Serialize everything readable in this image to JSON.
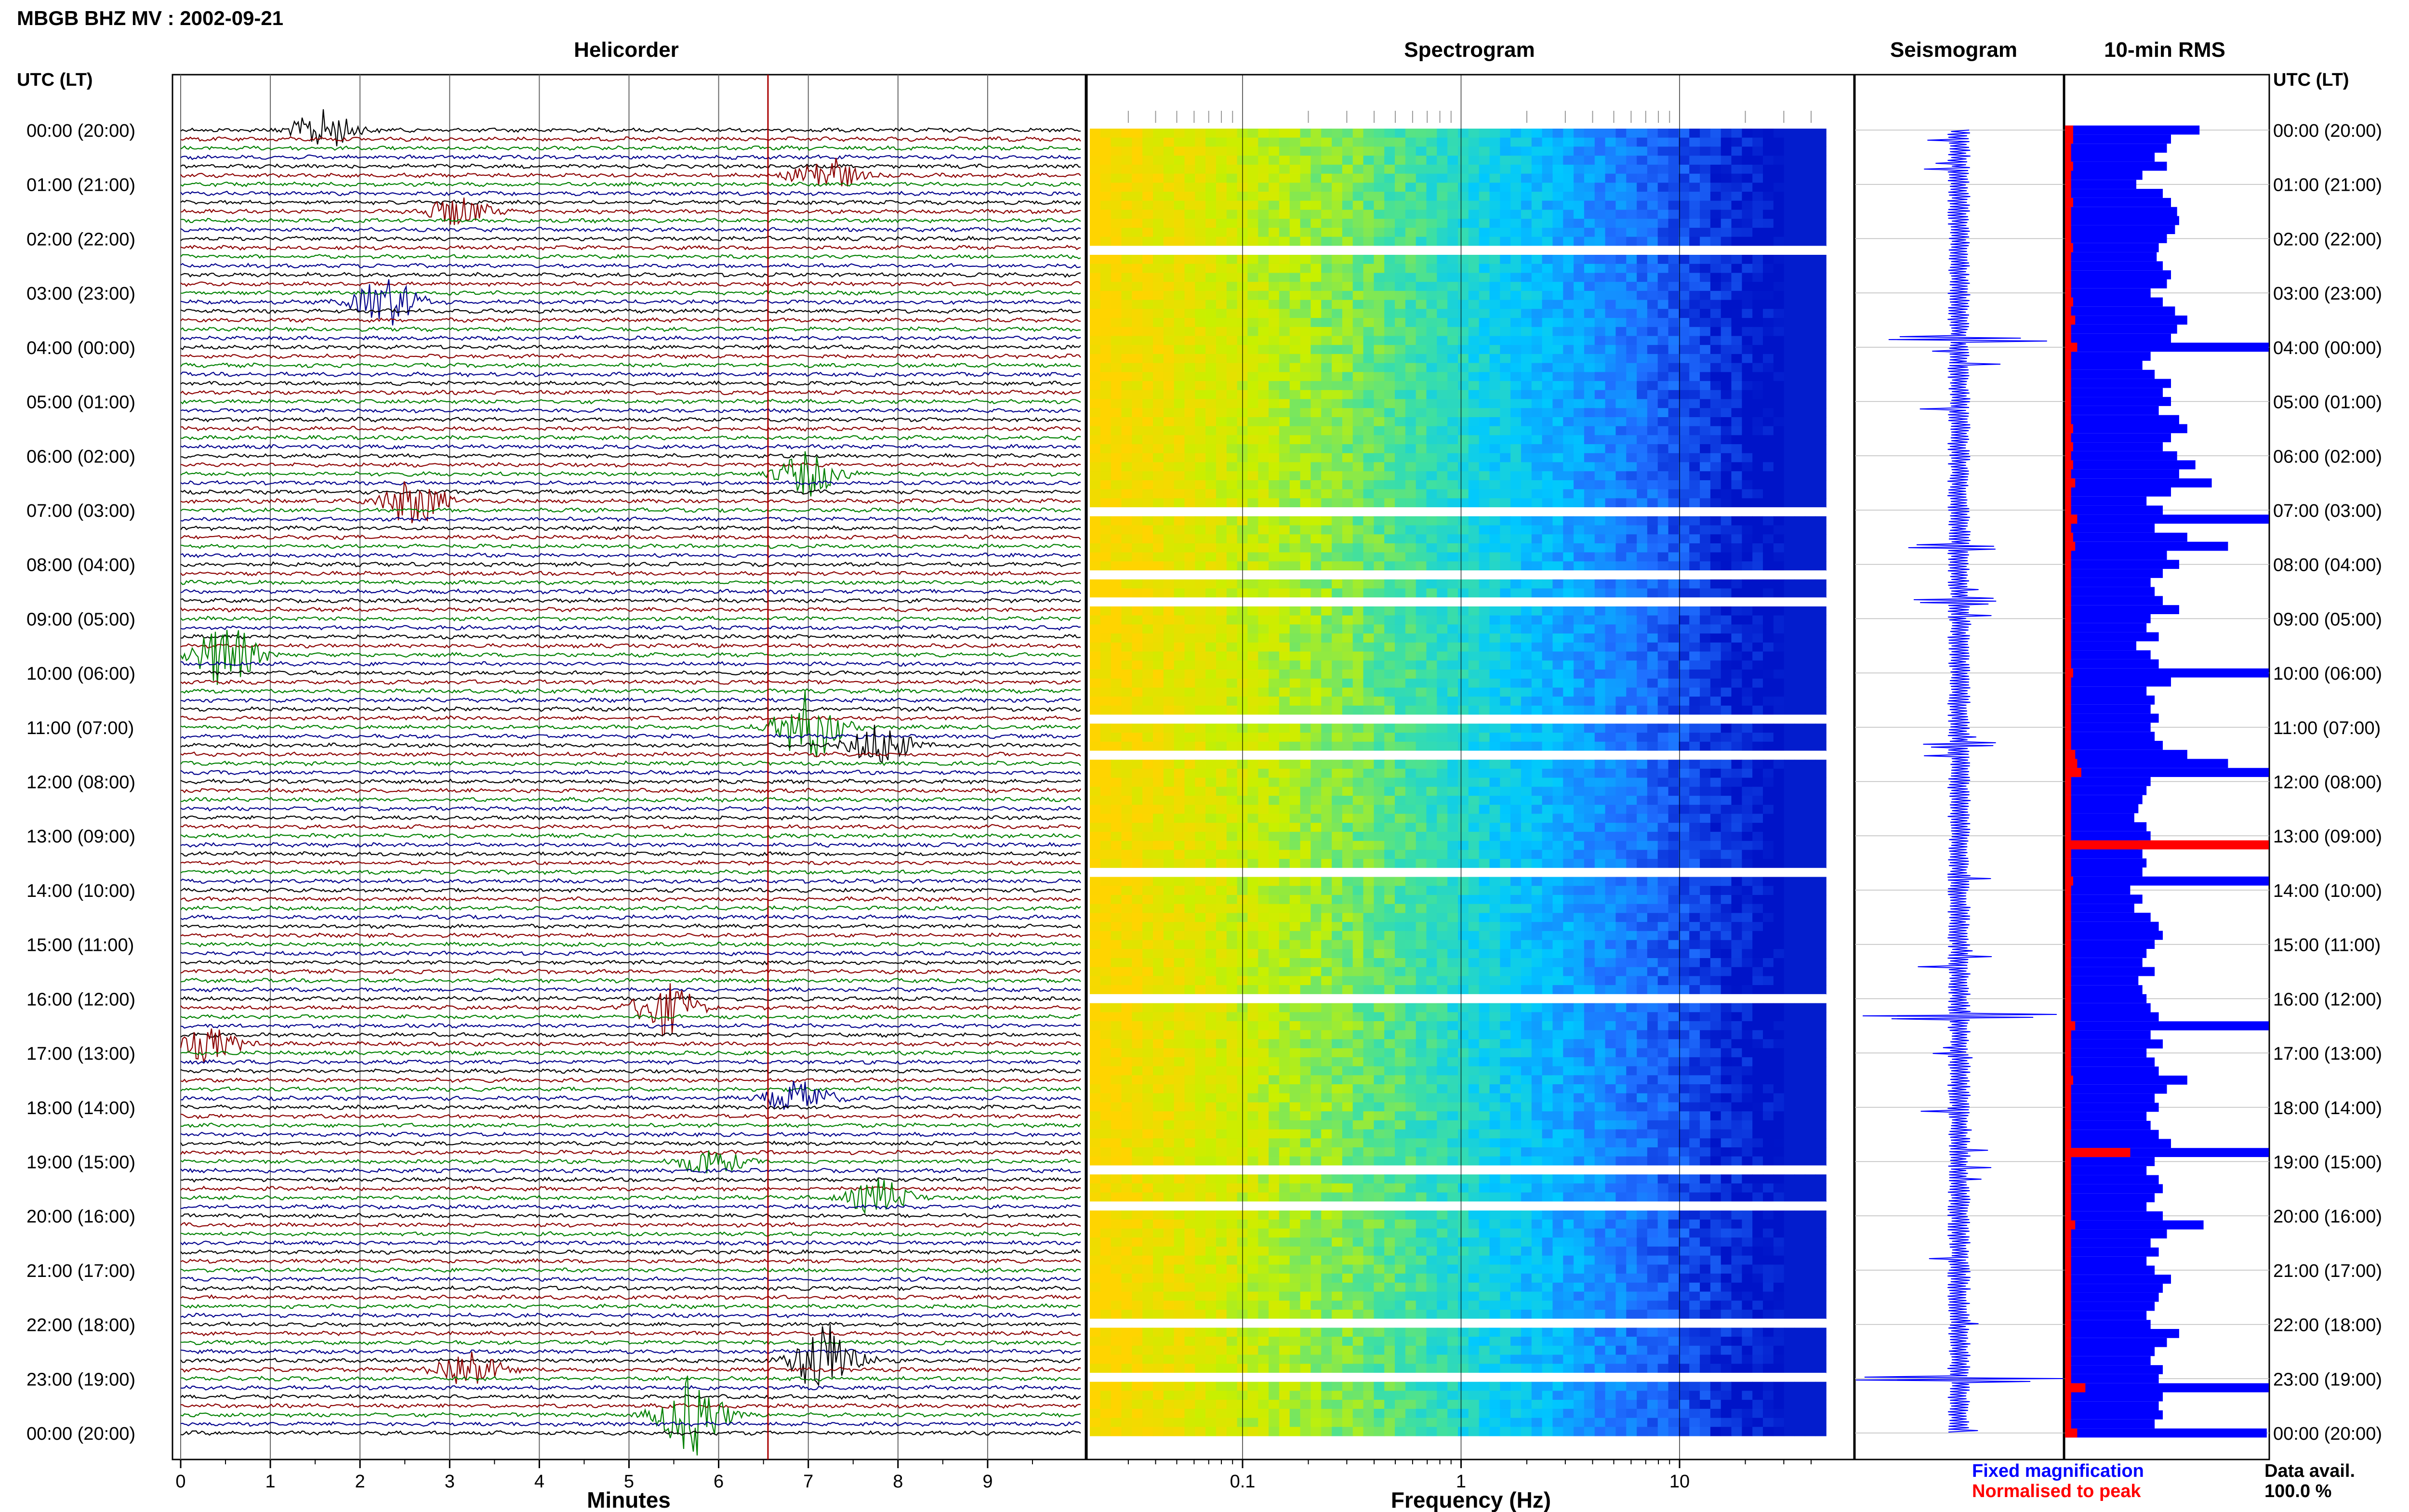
{
  "header": {
    "title": "MBGB BHZ MV : 2002-09-21",
    "utc_label_left": "UTC (LT)",
    "utc_label_right": "UTC (LT)"
  },
  "panels": {
    "helicorder": "Helicorder",
    "spectrogram": "Spectrogram",
    "seismogram": "Seismogram",
    "rms": "10-min RMS"
  },
  "colors": {
    "trace_cycle": [
      "#000000",
      "#8b0000",
      "#008000",
      "#00008b"
    ],
    "rms_fixed": "#0000ff",
    "rms_normalised": "#ff0000",
    "seismogram": "#0000ff",
    "cursor": "#aa0000"
  },
  "time_labels": [
    "00:00 (20:00)",
    "01:00 (21:00)",
    "02:00 (22:00)",
    "03:00 (23:00)",
    "04:00 (00:00)",
    "05:00 (01:00)",
    "06:00 (02:00)",
    "07:00 (03:00)",
    "08:00 (04:00)",
    "09:00 (05:00)",
    "10:00 (06:00)",
    "11:00 (07:00)",
    "12:00 (08:00)",
    "13:00 (09:00)",
    "14:00 (10:00)",
    "15:00 (11:00)",
    "16:00 (12:00)",
    "17:00 (13:00)",
    "18:00 (14:00)",
    "19:00 (15:00)",
    "20:00 (16:00)",
    "21:00 (17:00)",
    "22:00 (18:00)",
    "23:00 (19:00)",
    "00:00 (20:00)"
  ],
  "legend": {
    "fixed": "Fixed magnification",
    "normalised": "Normalised to peak",
    "data_avail_label": "Data avail.",
    "data_avail_value": "100.0 %"
  },
  "chart_data": [
    {
      "type": "line",
      "panel": "Helicorder",
      "xlabel": "Minutes",
      "x_ticks": [
        "0",
        "1",
        "2",
        "3",
        "4",
        "5",
        "6",
        "7",
        "8",
        "9"
      ],
      "xlim": [
        0,
        10
      ],
      "cursor_minute": 6.55,
      "rows": 145,
      "events": [
        {
          "row": 0,
          "minute": 1.6,
          "amp": 1.2
        },
        {
          "row": 5,
          "minute": 7.2,
          "amp": 1.1
        },
        {
          "row": 9,
          "minute": 3.1,
          "amp": 0.9
        },
        {
          "row": 19,
          "minute": 2.3,
          "amp": 1.5
        },
        {
          "row": 38,
          "minute": 7.0,
          "amp": 1.3
        },
        {
          "row": 41,
          "minute": 2.6,
          "amp": 1.4
        },
        {
          "row": 58,
          "minute": 0.5,
          "amp": 2.0
        },
        {
          "row": 66,
          "minute": 7.0,
          "amp": 2.2
        },
        {
          "row": 68,
          "minute": 7.8,
          "amp": 1.3
        },
        {
          "row": 97,
          "minute": 5.4,
          "amp": 1.6
        },
        {
          "row": 101,
          "minute": 0.3,
          "amp": 1.0
        },
        {
          "row": 107,
          "minute": 6.9,
          "amp": 1.0
        },
        {
          "row": 114,
          "minute": 5.9,
          "amp": 0.9
        },
        {
          "row": 118,
          "minute": 7.8,
          "amp": 1.1
        },
        {
          "row": 136,
          "minute": 7.2,
          "amp": 2.4
        },
        {
          "row": 137,
          "minute": 3.2,
          "amp": 1.2
        },
        {
          "row": 142,
          "minute": 5.7,
          "amp": 2.5
        }
      ]
    },
    {
      "type": "heatmap",
      "panel": "Spectrogram",
      "xlabel": "Frequency (Hz)",
      "x_scale": "log",
      "x_ticks": [
        "0.1",
        "1",
        "10"
      ],
      "xlim": [
        0.02,
        50
      ],
      "colormap": [
        "#ffd400",
        "#c8f000",
        "#40e0a0",
        "#00c8ff",
        "#1f6fff",
        "#0014c8"
      ],
      "gap_rows": [
        13,
        42,
        49,
        52,
        65,
        69,
        82,
        96,
        115,
        119,
        132,
        138
      ]
    },
    {
      "type": "line",
      "panel": "Seismogram",
      "spikes": [
        {
          "row": 23,
          "amp": 0.9
        },
        {
          "row": 46,
          "amp": 0.5
        },
        {
          "row": 52,
          "amp": 0.5
        },
        {
          "row": 68,
          "amp": 0.4
        },
        {
          "row": 98,
          "amp": 0.95
        },
        {
          "row": 138,
          "amp": 1.0
        }
      ]
    },
    {
      "type": "bar",
      "panel": "10-min RMS",
      "orientation": "horizontal",
      "series": [
        {
          "name": "Fixed magnification",
          "values": [
            0.66,
            0.52,
            0.5,
            0.44,
            0.5,
            0.38,
            0.35,
            0.48,
            0.52,
            0.55,
            0.56,
            0.54,
            0.5,
            0.46,
            0.45,
            0.48,
            0.52,
            0.5,
            0.42,
            0.48,
            0.54,
            0.6,
            0.55,
            0.52,
            1.0,
            0.42,
            0.38,
            0.44,
            0.52,
            0.48,
            0.52,
            0.46,
            0.56,
            0.6,
            0.52,
            0.48,
            0.55,
            0.64,
            0.56,
            0.72,
            0.52,
            0.4,
            0.48,
            1.0,
            0.44,
            0.6,
            0.8,
            0.5,
            0.56,
            0.48,
            0.42,
            0.44,
            0.48,
            0.56,
            0.42,
            0.4,
            0.46,
            0.35,
            0.42,
            0.46,
            1.0,
            0.52,
            0.4,
            0.44,
            0.42,
            0.46,
            0.42,
            0.44,
            0.48,
            0.6,
            0.8,
            1.0,
            0.42,
            0.4,
            0.38,
            0.36,
            0.34,
            0.4,
            0.42,
            0.36,
            0.38,
            0.4,
            0.38,
            1.0,
            0.32,
            0.38,
            0.34,
            0.42,
            0.46,
            0.48,
            0.44,
            0.4,
            0.38,
            0.44,
            0.36,
            0.38,
            0.4,
            0.42,
            0.46,
            1.0,
            0.42,
            0.48,
            0.4,
            0.44,
            0.46,
            0.6,
            0.5,
            0.44,
            0.46,
            0.4,
            0.42,
            0.46,
            0.52,
            1.0,
            0.44,
            0.4,
            0.46,
            0.48,
            0.44,
            0.4,
            0.48,
            0.68,
            0.5,
            0.42,
            0.46,
            0.4,
            0.44,
            0.52,
            0.48,
            0.46,
            0.44,
            0.4,
            0.42,
            0.56,
            0.5,
            0.44,
            0.42,
            0.48,
            0.46,
            1.0,
            0.48,
            0.46,
            0.48,
            0.44,
            0.99
          ]
        },
        {
          "name": "Normalised to peak",
          "values": [
            0.04,
            0.04,
            0.03,
            0.03,
            0.04,
            0.03,
            0.03,
            0.03,
            0.04,
            0.03,
            0.03,
            0.03,
            0.03,
            0.04,
            0.03,
            0.03,
            0.03,
            0.03,
            0.03,
            0.04,
            0.03,
            0.05,
            0.03,
            0.03,
            0.06,
            0.03,
            0.03,
            0.03,
            0.03,
            0.03,
            0.03,
            0.03,
            0.03,
            0.04,
            0.03,
            0.04,
            0.03,
            0.04,
            0.03,
            0.05,
            0.03,
            0.03,
            0.03,
            0.06,
            0.03,
            0.04,
            0.05,
            0.03,
            0.03,
            0.03,
            0.03,
            0.03,
            0.03,
            0.03,
            0.03,
            0.03,
            0.03,
            0.03,
            0.03,
            0.03,
            0.04,
            0.03,
            0.03,
            0.03,
            0.03,
            0.03,
            0.03,
            0.03,
            0.03,
            0.05,
            0.06,
            0.08,
            0.03,
            0.03,
            0.03,
            0.03,
            0.03,
            0.03,
            0.03,
            1.0,
            0.03,
            0.03,
            0.03,
            0.04,
            0.03,
            0.03,
            0.03,
            0.03,
            0.03,
            0.03,
            0.03,
            0.03,
            0.03,
            0.03,
            0.03,
            0.03,
            0.03,
            0.03,
            0.03,
            0.05,
            0.03,
            0.03,
            0.03,
            0.03,
            0.03,
            0.04,
            0.03,
            0.03,
            0.03,
            0.03,
            0.03,
            0.03,
            0.03,
            0.32,
            0.03,
            0.03,
            0.03,
            0.03,
            0.03,
            0.03,
            0.03,
            0.05,
            0.03,
            0.03,
            0.03,
            0.03,
            0.03,
            0.03,
            0.03,
            0.03,
            0.03,
            0.03,
            0.03,
            0.03,
            0.03,
            0.03,
            0.03,
            0.03,
            0.03,
            0.1,
            0.03,
            0.03,
            0.03,
            0.03,
            0.06
          ]
        }
      ]
    }
  ]
}
